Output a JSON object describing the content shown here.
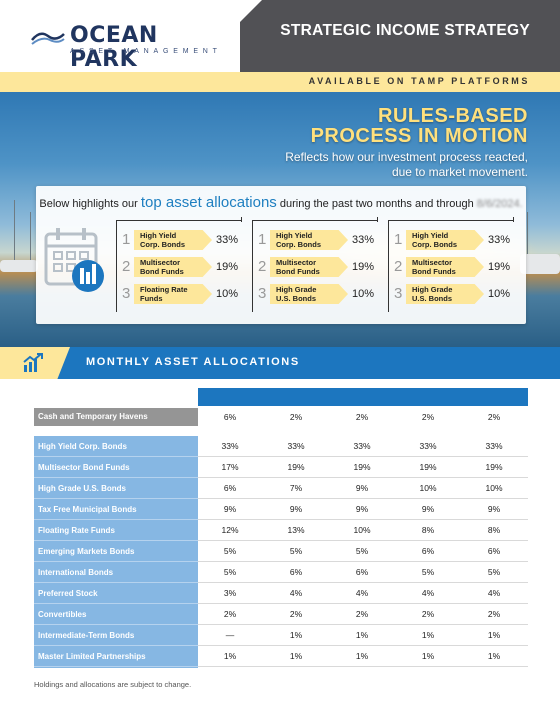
{
  "header": {
    "logo_name": "OCEAN PARK",
    "logo_sub": "ASSET MANAGEMENT",
    "title": "STRATEGIC INCOME STRATEGY",
    "banner": "AVAILABLE ON TAMP PLATFORMS"
  },
  "hero": {
    "headline_line1": "RULES-BASED",
    "headline_line2": "PROCESS IN MOTION",
    "subtitle_line1": "Reflects how our investment process reacted,",
    "subtitle_line2": "due to market movement."
  },
  "allocations_card": {
    "intro_before": "Below highlights our ",
    "intro_highlight": "top asset allocations",
    "intro_after": " during the past two months and through ",
    "intro_date": "8/6/2024.",
    "groups": [
      {
        "items": [
          {
            "rank": "1",
            "line1": "High Yield",
            "line2": "Corp. Bonds",
            "pct": "33%"
          },
          {
            "rank": "2",
            "line1": "Multisector",
            "line2": "Bond Funds",
            "pct": "19%"
          },
          {
            "rank": "3",
            "line1": "Floating Rate",
            "line2": "Funds",
            "pct": "10%"
          }
        ]
      },
      {
        "items": [
          {
            "rank": "1",
            "line1": "High Yield",
            "line2": "Corp. Bonds",
            "pct": "33%"
          },
          {
            "rank": "2",
            "line1": "Multisector",
            "line2": "Bond Funds",
            "pct": "19%"
          },
          {
            "rank": "3",
            "line1": "High Grade",
            "line2": "U.S. Bonds",
            "pct": "10%"
          }
        ]
      },
      {
        "items": [
          {
            "rank": "1",
            "line1": "High Yield",
            "line2": "Corp. Bonds",
            "pct": "33%"
          },
          {
            "rank": "2",
            "line1": "Multisector",
            "line2": "Bond Funds",
            "pct": "19%"
          },
          {
            "rank": "3",
            "line1": "High Grade",
            "line2": "U.S. Bonds",
            "pct": "10%"
          }
        ]
      }
    ]
  },
  "section": {
    "title": "MONTHLY ASSET ALLOCATIONS"
  },
  "table": {
    "cash": {
      "label": "Cash and Temporary Havens",
      "values": [
        "6%",
        "2%",
        "2%",
        "2%",
        "2%"
      ]
    },
    "rows": [
      {
        "label": "High Yield Corp. Bonds",
        "values": [
          "33%",
          "33%",
          "33%",
          "33%",
          "33%"
        ]
      },
      {
        "label": "Multisector Bond Funds",
        "values": [
          "17%",
          "19%",
          "19%",
          "19%",
          "19%"
        ]
      },
      {
        "label": "High Grade U.S. Bonds",
        "values": [
          "6%",
          "7%",
          "9%",
          "10%",
          "10%"
        ]
      },
      {
        "label": "Tax Free Municipal Bonds",
        "values": [
          "9%",
          "9%",
          "9%",
          "9%",
          "9%"
        ]
      },
      {
        "label": "Floating Rate Funds",
        "values": [
          "12%",
          "13%",
          "10%",
          "8%",
          "8%"
        ]
      },
      {
        "label": "Emerging Markets Bonds",
        "values": [
          "5%",
          "5%",
          "5%",
          "6%",
          "6%"
        ]
      },
      {
        "label": "International Bonds",
        "values": [
          "5%",
          "6%",
          "6%",
          "5%",
          "5%"
        ]
      },
      {
        "label": "Preferred Stock",
        "values": [
          "3%",
          "4%",
          "4%",
          "4%",
          "4%"
        ]
      },
      {
        "label": "Convertibles",
        "values": [
          "2%",
          "2%",
          "2%",
          "2%",
          "2%"
        ]
      },
      {
        "label": "Intermediate-Term Bonds",
        "values": [
          "—",
          "1%",
          "1%",
          "1%",
          "1%"
        ]
      },
      {
        "label": "Master Limited Partnerships",
        "values": [
          "1%",
          "1%",
          "1%",
          "1%",
          "1%"
        ]
      }
    ]
  },
  "footnote": "Holdings and allocations are subject to change.",
  "colors": {
    "brand_blue": "#1c76bf",
    "accent_yellow": "#fde79b",
    "dark_gray": "#515155"
  }
}
